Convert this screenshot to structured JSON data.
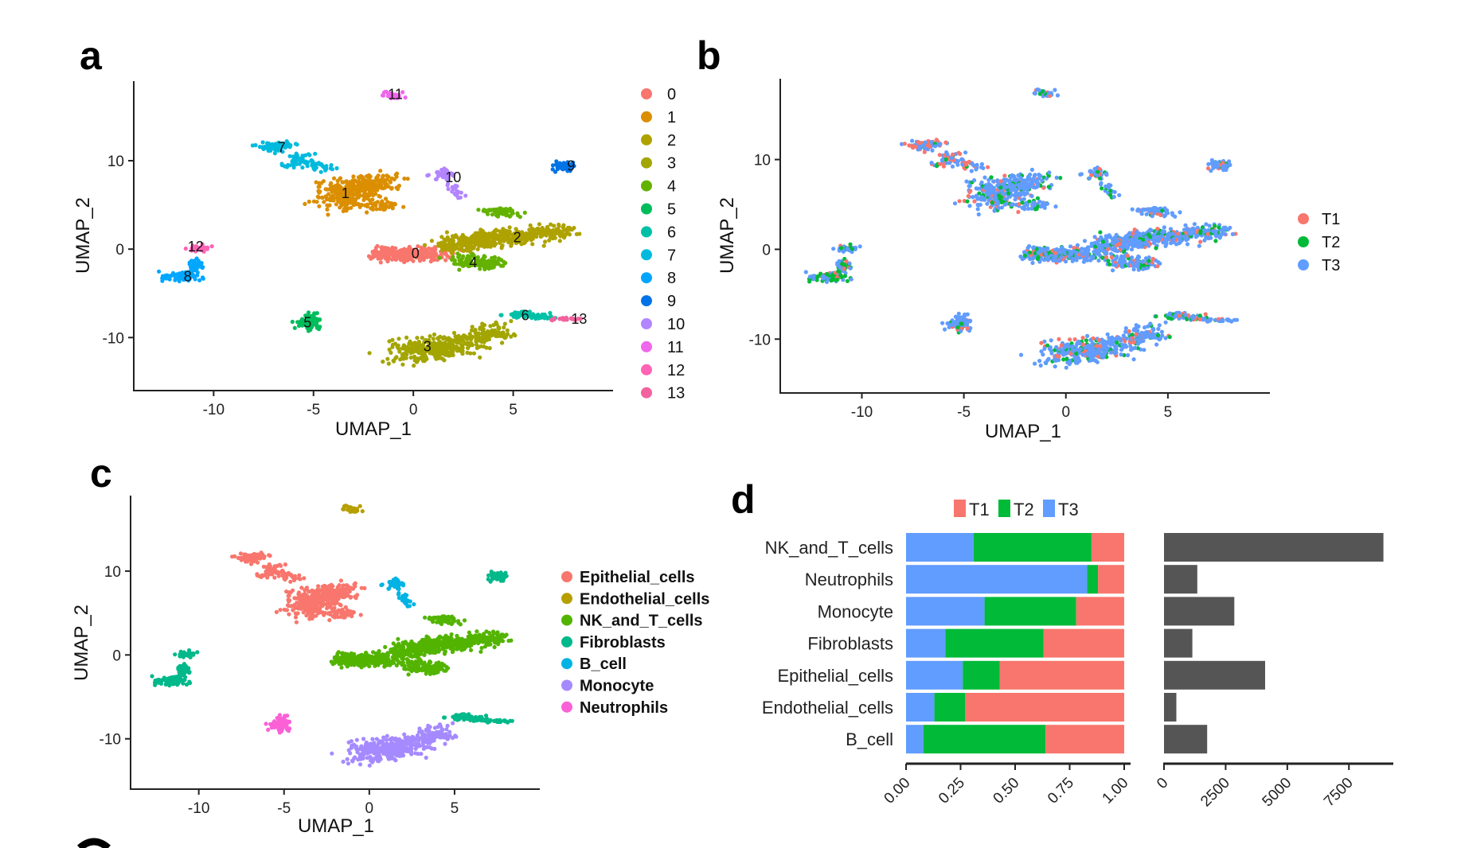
{
  "panel_labels": [
    "a",
    "b",
    "c",
    "d"
  ],
  "colors": {
    "clusters": [
      "#F8766D",
      "#DB8E00",
      "#AEA200",
      "#A3A500",
      "#64B200",
      "#00BD5C",
      "#00C1A7",
      "#00BADE",
      "#00A6FF",
      "#0073E6",
      "#B385FF",
      "#EF67EB",
      "#FF63B6",
      "#F2629E"
    ],
    "groups": {
      "T1": "#F8766D",
      "T2": "#00BA38",
      "T3": "#619CFF"
    },
    "celltypes": [
      "#F8766D",
      "#B79F00",
      "#53B400",
      "#00B88A",
      "#00B3E3",
      "#A58AFF",
      "#FB61D7"
    ],
    "count_bar": "#555555"
  },
  "chart_data": [
    {
      "id": "a",
      "type": "scatter",
      "xlabel": "UMAP_1",
      "ylabel": "UMAP_2",
      "xlim": [
        -14,
        10
      ],
      "ylim": [
        -16,
        19
      ],
      "xticks": [
        -10,
        -5,
        0,
        5
      ],
      "yticks": [
        -10,
        0,
        10
      ],
      "legend": [
        "0",
        "1",
        "2",
        "3",
        "4",
        "5",
        "6",
        "7",
        "8",
        "9",
        "10",
        "11",
        "12",
        "13"
      ],
      "legend_position": "right",
      "cluster_labels": [
        {
          "label": "0",
          "x": 0.1,
          "y": -0.5
        },
        {
          "label": "1",
          "x": -3.4,
          "y": 6.3
        },
        {
          "label": "2",
          "x": 5.2,
          "y": 1.3
        },
        {
          "label": "3",
          "x": 0.7,
          "y": -11
        },
        {
          "label": "4",
          "x": 3.0,
          "y": -1.5
        },
        {
          "label": "5",
          "x": -5.3,
          "y": -8.3
        },
        {
          "label": "6",
          "x": 5.6,
          "y": -7.5
        },
        {
          "label": "7",
          "x": -6.6,
          "y": 11.5
        },
        {
          "label": "8",
          "x": -11.3,
          "y": -3.1
        },
        {
          "label": "9",
          "x": 7.9,
          "y": 9.4
        },
        {
          "label": "10",
          "x": 2.0,
          "y": 8.1
        },
        {
          "label": "11",
          "x": -0.9,
          "y": 17.5
        },
        {
          "label": "12",
          "x": -10.9,
          "y": 0.3
        },
        {
          "label": "13",
          "x": 8.3,
          "y": -7.9
        }
      ]
    },
    {
      "id": "b",
      "type": "scatter",
      "xlabel": "UMAP_1",
      "ylabel": "UMAP_2",
      "xlim": [
        -14,
        10
      ],
      "ylim": [
        -16,
        19
      ],
      "xticks": [
        -10,
        -5,
        0,
        5
      ],
      "yticks": [
        -10,
        0,
        10
      ],
      "legend": [
        "T1",
        "T2",
        "T3"
      ],
      "legend_position": "right"
    },
    {
      "id": "c",
      "type": "scatter",
      "xlabel": "UMAP_1",
      "ylabel": "UMAP_2",
      "xlim": [
        -14,
        10
      ],
      "ylim": [
        -16,
        19
      ],
      "xticks": [
        -10,
        -5,
        0,
        5
      ],
      "yticks": [
        -10,
        0,
        10
      ],
      "legend": [
        "Epithelial_cells",
        "Endothelial_cells",
        "NK_and_T_cells",
        "Fibroblasts",
        "B_cell",
        "Monocyte",
        "Neutrophils"
      ],
      "legend_position": "right"
    },
    {
      "id": "d",
      "type": "bar",
      "orientation": "horizontal",
      "stacked": true,
      "categories": [
        "NK_and_T_cells",
        "Neutrophils",
        "Monocyte",
        "Fibroblasts",
        "Epithelial_cells",
        "Endothelial_cells",
        "B_cell"
      ],
      "series": [
        {
          "name": "T3",
          "values": [
            0.31,
            0.83,
            0.36,
            0.18,
            0.26,
            0.13,
            0.08
          ]
        },
        {
          "name": "T2",
          "values": [
            0.54,
            0.05,
            0.42,
            0.45,
            0.17,
            0.14,
            0.56
          ]
        },
        {
          "name": "T1",
          "values": [
            0.15,
            0.12,
            0.22,
            0.37,
            0.57,
            0.73,
            0.36
          ]
        }
      ],
      "legend": [
        "T1",
        "T2",
        "T3"
      ],
      "legend_position": "top",
      "xlim": [
        0,
        1
      ],
      "xticks": [
        "0.00",
        "0.25",
        "0.50",
        "0.75",
        "1.00"
      ]
    },
    {
      "id": "d-counts",
      "type": "bar",
      "orientation": "horizontal",
      "categories": [
        "NK_and_T_cells",
        "Neutrophils",
        "Monocyte",
        "Fibroblasts",
        "Epithelial_cells",
        "Endothelial_cells",
        "B_cell"
      ],
      "values": [
        8900,
        1350,
        2850,
        1150,
        4100,
        500,
        1750
      ],
      "xlim": [
        0,
        9300
      ],
      "xticks": [
        "0",
        "2500",
        "5000",
        "7500"
      ]
    }
  ]
}
